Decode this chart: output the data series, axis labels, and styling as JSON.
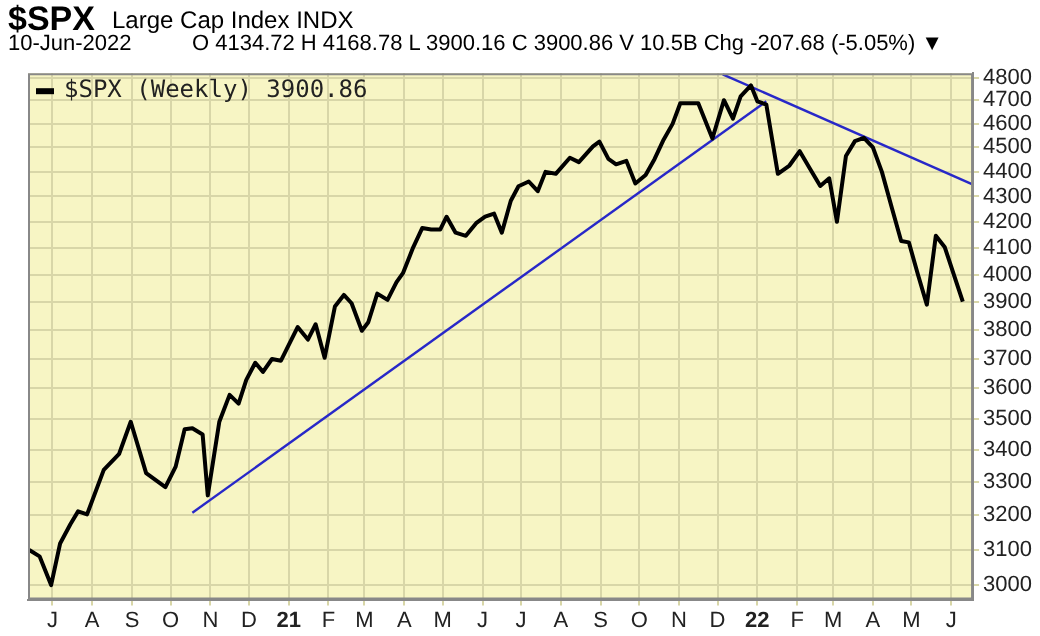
{
  "chart_data": {
    "type": "line",
    "title": "$SPX",
    "subtitle": "Large Cap Index INDX",
    "annotations": [
      "10-Jun-2022",
      "O 4134.72  H 4168.78  L 3900.16  C 3900.86  V 10.5B  Chg -207.68 (-5.05%) ▼"
    ],
    "series": [
      {
        "name": "$SPX (Weekly) 3900.86",
        "color": "#000000",
        "x": [
          "2020-06-13",
          "2020-06-21",
          "2020-06-30",
          "2020-07-07",
          "2020-07-15",
          "2020-07-21",
          "2020-07-28",
          "2020-08-10",
          "2020-08-22",
          "2020-08-31",
          "2020-09-12",
          "2020-09-27",
          "2020-10-05",
          "2020-10-12",
          "2020-10-18",
          "2020-10-26",
          "2020-10-30",
          "2020-11-08",
          "2020-11-16",
          "2020-11-23",
          "2020-11-29",
          "2020-12-06",
          "2020-12-12",
          "2020-12-19",
          "2020-12-26",
          "2021-01-01",
          "2021-01-08",
          "2021-01-16",
          "2021-01-22",
          "2021-01-29",
          "2021-02-06",
          "2021-02-13",
          "2021-02-19",
          "2021-02-27",
          "2021-03-04",
          "2021-03-11",
          "2021-03-19",
          "2021-03-26",
          "2021-03-31",
          "2021-04-08",
          "2021-04-15",
          "2021-04-22",
          "2021-04-29",
          "2021-05-04",
          "2021-05-11",
          "2021-05-19",
          "2021-05-27",
          "2021-06-03",
          "2021-06-10",
          "2021-06-16",
          "2021-06-23",
          "2021-06-29",
          "2021-07-07",
          "2021-07-14",
          "2021-07-20",
          "2021-07-28",
          "2021-08-08",
          "2021-08-15",
          "2021-08-26",
          "2021-08-31",
          "2021-09-07",
          "2021-09-13",
          "2021-09-21",
          "2021-09-28",
          "2021-10-06",
          "2021-10-13",
          "2021-10-20",
          "2021-10-27",
          "2021-11-02",
          "2021-11-08",
          "2021-11-16",
          "2021-11-27",
          "2021-12-06",
          "2021-12-13",
          "2021-12-19",
          "2021-12-27",
          "2022-01-01",
          "2022-01-08",
          "2022-01-17",
          "2022-01-26",
          "2022-02-03",
          "2022-02-11",
          "2022-02-19",
          "2022-02-26",
          "2022-03-04",
          "2022-03-11",
          "2022-03-18",
          "2022-03-25",
          "2022-04-01",
          "2022-04-08",
          "2022-04-16",
          "2022-04-23",
          "2022-04-29",
          "2022-05-06",
          "2022-05-13",
          "2022-05-20",
          "2022-05-27",
          "2022-06-10"
        ],
        "values": [
          3099,
          3081,
          3000,
          3118,
          3174,
          3212,
          3203,
          3338,
          3388,
          3490,
          3328,
          3285,
          3348,
          3466,
          3469,
          3449,
          3260,
          3490,
          3578,
          3549,
          3628,
          3686,
          3655,
          3699,
          3693,
          3747,
          3810,
          3766,
          3820,
          3703,
          3883,
          3925,
          3895,
          3797,
          3827,
          3930,
          3907,
          3972,
          4005,
          4102,
          4176,
          4170,
          4170,
          4220,
          4158,
          4146,
          4195,
          4220,
          4232,
          4158,
          4283,
          4341,
          4360,
          4321,
          4399,
          4391,
          4457,
          4439,
          4504,
          4524,
          4452,
          4430,
          4444,
          4352,
          4386,
          4452,
          4532,
          4599,
          4688,
          4688,
          4688,
          4537,
          4701,
          4621,
          4718,
          4766,
          4696,
          4682,
          4391,
          4425,
          4484,
          4412,
          4342,
          4373,
          4200,
          4464,
          4526,
          4540,
          4500,
          4399,
          4250,
          4126,
          4121,
          4001,
          3890,
          4146,
          4102,
          3900.86
        ]
      },
      {
        "color": "#2828c8",
        "x": [
          "2020-10-18",
          "2022-01-08"
        ],
        "values": [
          3208,
          4696
        ]
      },
      {
        "color": "#2828c8",
        "x": [
          "2021-12-05",
          "2022-06-18"
        ],
        "values": [
          4815,
          4347
        ]
      }
    ],
    "log": "y",
    "grid": true,
    "legend": "top left",
    "marker": "none",
    "line_style": "solid",
    "xlim": [
      "2020-06-12",
      "2022-06-18"
    ],
    "xticks": [
      {
        "value": "2020-07-01",
        "label": "J"
      },
      {
        "value": "2020-08-01",
        "label": "A"
      },
      {
        "value": "2020-09-01",
        "label": "S"
      },
      {
        "value": "2020-10-01",
        "label": "O"
      },
      {
        "value": "2020-11-01",
        "label": "N"
      },
      {
        "value": "2020-12-01",
        "label": "D"
      },
      {
        "value": "2021-01-01",
        "label": "21"
      },
      {
        "value": "2021-02-01",
        "label": "F"
      },
      {
        "value": "2021-03-01",
        "label": "M"
      },
      {
        "value": "2021-04-01",
        "label": "A"
      },
      {
        "value": "2021-05-01",
        "label": "M"
      },
      {
        "value": "2021-06-01",
        "label": "J"
      },
      {
        "value": "2021-07-01",
        "label": "J"
      },
      {
        "value": "2021-08-01",
        "label": "A"
      },
      {
        "value": "2021-09-01",
        "label": "S"
      },
      {
        "value": "2021-10-01",
        "label": "O"
      },
      {
        "value": "2021-11-01",
        "label": "N"
      },
      {
        "value": "2021-12-01",
        "label": "D"
      },
      {
        "value": "2022-01-01",
        "label": "22"
      },
      {
        "value": "2022-02-01",
        "label": "F"
      },
      {
        "value": "2022-03-01",
        "label": "M"
      },
      {
        "value": "2022-04-01",
        "label": "A"
      },
      {
        "value": "2022-05-01",
        "label": "M"
      },
      {
        "value": "2022-06-01",
        "label": "J"
      }
    ],
    "ylim": [
      2960,
      4820
    ],
    "yticks": [
      3000,
      3100,
      3200,
      3300,
      3400,
      3500,
      3600,
      3700,
      3800,
      3900,
      4000,
      4100,
      4200,
      4300,
      4400,
      4500,
      4600,
      4700,
      4800
    ]
  }
}
